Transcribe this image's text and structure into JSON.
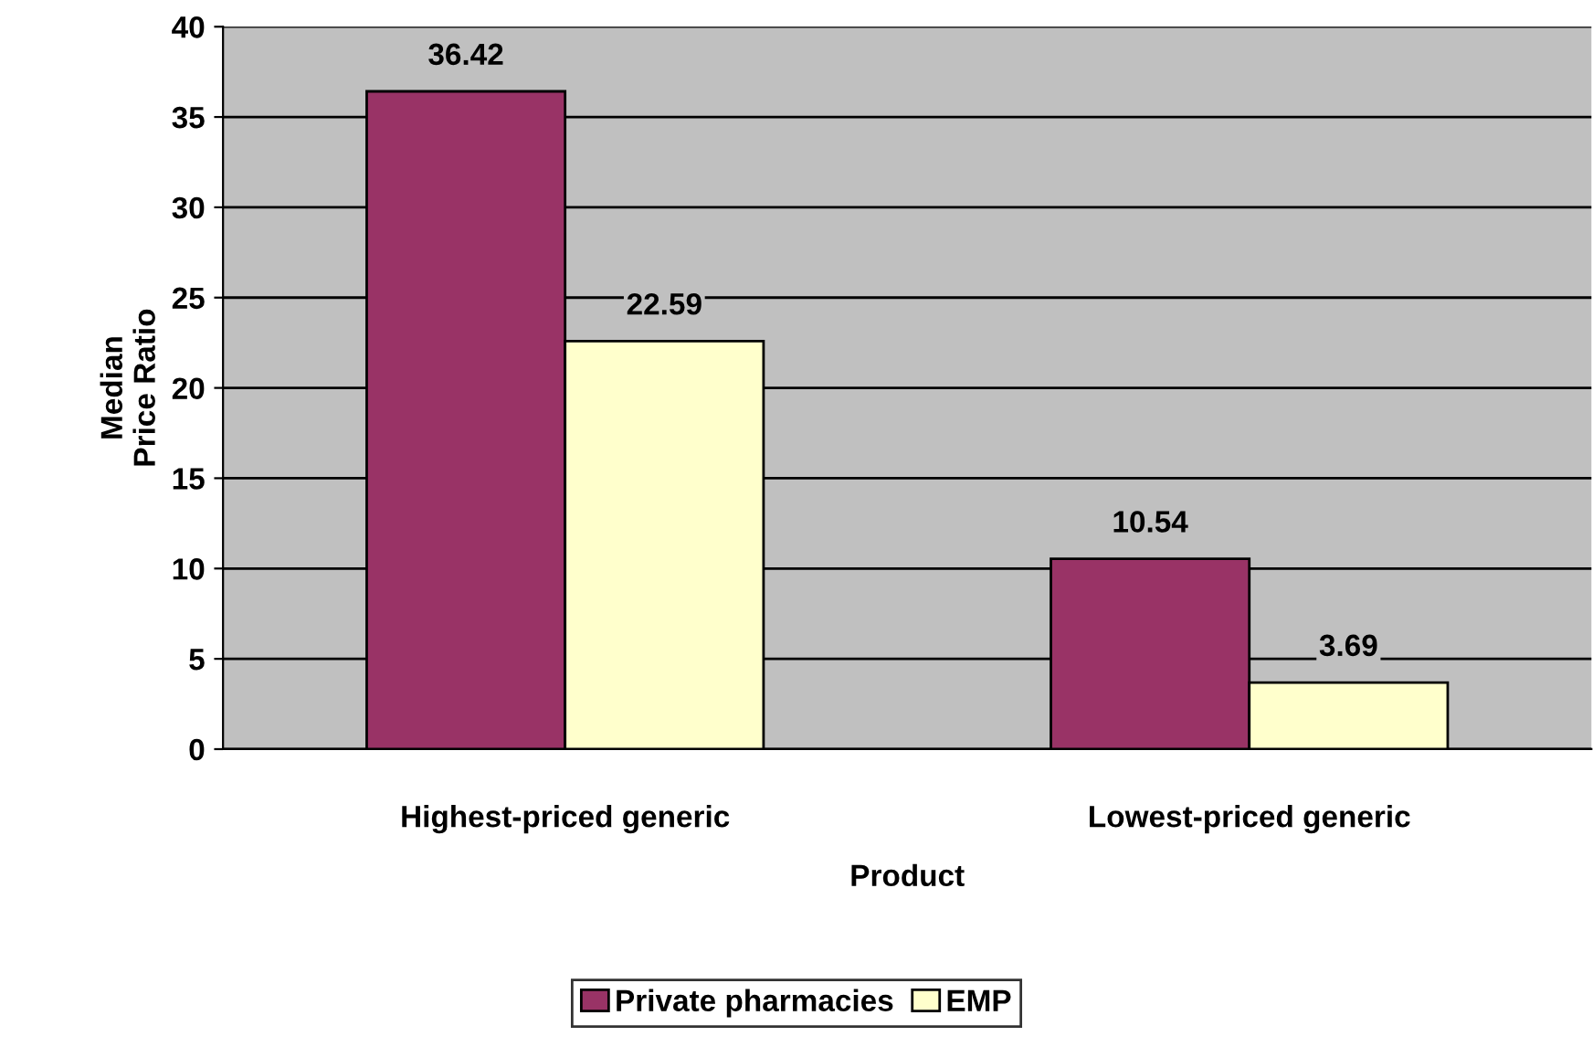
{
  "chart_data": {
    "type": "bar",
    "xlabel": "Product",
    "ylabel": "Median\nPrice Ratio",
    "categories": [
      "Highest-priced generic",
      "Lowest-priced generic"
    ],
    "series": [
      {
        "name": "Private pharmacies",
        "color": "#993366",
        "values": [
          36.42,
          10.54
        ]
      },
      {
        "name": "EMP",
        "color": "#ffffcc",
        "values": [
          22.59,
          3.69
        ]
      }
    ],
    "ylim": [
      0,
      40
    ],
    "yticks": [
      0,
      5,
      10,
      15,
      20,
      25,
      30,
      35,
      40
    ],
    "grid": "y",
    "legend": "bottom",
    "data_labels": true
  }
}
